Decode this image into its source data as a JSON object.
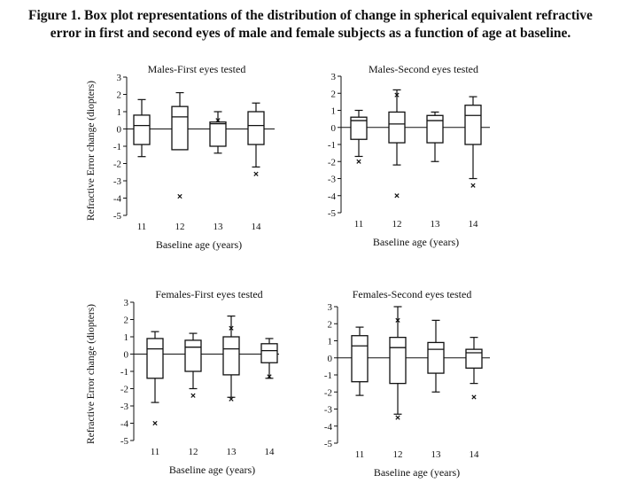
{
  "caption": {
    "line1": "Figure 1. Box plot representations of the distribution of change in spherical equivalent refractive",
    "line2": "error in first and second eyes of male and female subjects as a function of age at baseline."
  },
  "chart_data": [
    {
      "type": "box",
      "title": "Males-First eyes tested",
      "xlabel": "Baseline age (years)",
      "ylabel": "Refractive Error change (diopters)",
      "ylim": [
        -5,
        3
      ],
      "yticks": [
        "3",
        "2",
        "1",
        "0",
        "-1",
        "-2",
        "-3",
        "-4",
        "-5"
      ],
      "categories": [
        "11",
        "12",
        "13",
        "14"
      ],
      "boxes": [
        {
          "whisker_low": -1.6,
          "q1": -0.9,
          "median": 0.2,
          "q3": 0.8,
          "whisker_high": 1.7,
          "outliers": []
        },
        {
          "whisker_low": -1.2,
          "q1": -1.2,
          "median": 0.7,
          "q3": 1.3,
          "whisker_high": 2.1,
          "outliers": [
            -3.9
          ]
        },
        {
          "whisker_low": -1.4,
          "q1": -1.0,
          "median": 0.3,
          "q3": 0.4,
          "whisker_high": 1.0,
          "outliers": [
            0.5
          ]
        },
        {
          "whisker_low": -2.2,
          "q1": -0.9,
          "median": 0.2,
          "q3": 1.0,
          "whisker_high": 1.5,
          "outliers": [
            -2.6
          ]
        }
      ]
    },
    {
      "type": "box",
      "title": "Males-Second eyes tested",
      "xlabel": "Baseline age (years)",
      "ylabel": "",
      "ylim": [
        -5,
        3
      ],
      "yticks": [
        "3",
        "2",
        "1",
        "0",
        "-1",
        "-2",
        "-3",
        "-4",
        "-5"
      ],
      "categories": [
        "11",
        "12",
        "13",
        "14"
      ],
      "boxes": [
        {
          "whisker_low": -1.7,
          "q1": -0.7,
          "median": 0.4,
          "q3": 0.6,
          "whisker_high": 1.0,
          "outliers": [
            -2.0
          ]
        },
        {
          "whisker_low": -2.2,
          "q1": -0.9,
          "median": 0.2,
          "q3": 0.9,
          "whisker_high": 2.2,
          "outliers": [
            1.9,
            -4.0
          ]
        },
        {
          "whisker_low": -2.0,
          "q1": -0.9,
          "median": 0.4,
          "q3": 0.7,
          "whisker_high": 0.9,
          "outliers": []
        },
        {
          "whisker_low": -3.0,
          "q1": -1.0,
          "median": 0.7,
          "q3": 1.3,
          "whisker_high": 1.8,
          "outliers": [
            -3.4
          ]
        }
      ]
    },
    {
      "type": "box",
      "title": "Females-First eyes tested",
      "xlabel": "Baseline age (years)",
      "ylabel": "Refractive Error change (diopters)",
      "ylim": [
        -5,
        3
      ],
      "yticks": [
        "3",
        "2",
        "1",
        "0",
        "-1",
        "-2",
        "-3",
        "-4",
        "-5"
      ],
      "categories": [
        "11",
        "12",
        "13",
        "14"
      ],
      "boxes": [
        {
          "whisker_low": -2.8,
          "q1": -1.4,
          "median": 0.3,
          "q3": 0.9,
          "whisker_high": 1.3,
          "outliers": [
            -4.0
          ]
        },
        {
          "whisker_low": -2.0,
          "q1": -1.0,
          "median": 0.4,
          "q3": 0.8,
          "whisker_high": 1.2,
          "outliers": [
            -2.4
          ]
        },
        {
          "whisker_low": -2.5,
          "q1": -1.2,
          "median": 0.3,
          "q3": 1.0,
          "whisker_high": 2.2,
          "outliers": [
            1.5,
            -2.6
          ]
        },
        {
          "whisker_low": -1.4,
          "q1": -0.5,
          "median": 0.2,
          "q3": 0.6,
          "whisker_high": 0.9,
          "outliers": [
            -1.3
          ]
        }
      ]
    },
    {
      "type": "box",
      "title": "Females-Second eyes tested",
      "xlabel": "Baseline age (years)",
      "ylabel": "",
      "ylim": [
        -5,
        3
      ],
      "yticks": [
        "3",
        "2",
        "1",
        "0",
        "-1",
        "-2",
        "-3",
        "-4",
        "-5"
      ],
      "categories": [
        "11",
        "12",
        "13",
        "14"
      ],
      "boxes": [
        {
          "whisker_low": -2.2,
          "q1": -1.4,
          "median": 0.7,
          "q3": 1.3,
          "whisker_high": 1.8,
          "outliers": []
        },
        {
          "whisker_low": -3.3,
          "q1": -1.5,
          "median": 0.6,
          "q3": 1.2,
          "whisker_high": 3.0,
          "outliers": [
            2.2,
            -3.5
          ]
        },
        {
          "whisker_low": -2.0,
          "q1": -0.9,
          "median": 0.5,
          "q3": 0.9,
          "whisker_high": 2.2,
          "outliers": []
        },
        {
          "whisker_low": -1.5,
          "q1": -0.6,
          "median": 0.3,
          "q3": 0.5,
          "whisker_high": 1.2,
          "outliers": [
            -2.3
          ]
        }
      ]
    }
  ]
}
